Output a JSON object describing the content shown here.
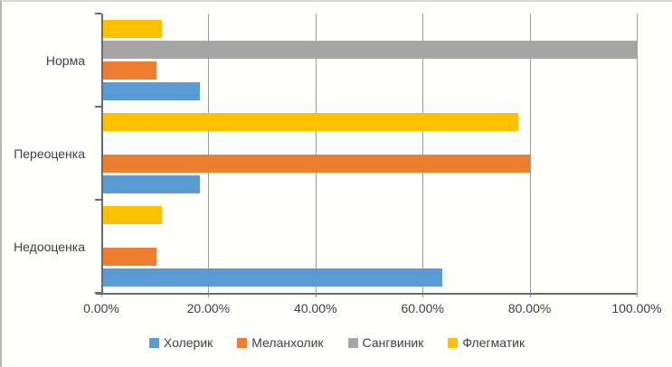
{
  "chart_data": {
    "type": "bar",
    "orientation": "horizontal",
    "title": "",
    "categories": [
      "Норма",
      "Переоценка",
      "Недооценка"
    ],
    "series": [
      {
        "name": "Холерик",
        "color": "#5B9BD5",
        "values": [
          18.2,
          18.2,
          63.6
        ]
      },
      {
        "name": "Меланхолик",
        "color": "#ED7D31",
        "values": [
          10.0,
          80.0,
          10.0
        ]
      },
      {
        "name": "Сангвиник",
        "color": "#A6A6A6",
        "values": [
          100.0,
          0.0,
          0.0
        ]
      },
      {
        "name": "Флегматик",
        "color": "#FFC000",
        "values": [
          11.1,
          77.8,
          11.1
        ]
      }
    ],
    "series_order_in_group_top_to_bottom": [
      "Флегматик",
      "Сангвиник",
      "Меланхолик",
      "Холерик"
    ],
    "x_axis": {
      "min": 0,
      "max": 100,
      "tick_step": 20,
      "tick_labels": [
        "0.00%",
        "20.00%",
        "40.00%",
        "60.00%",
        "80.00%",
        "100.00%"
      ]
    },
    "legend": {
      "position": "bottom",
      "labels": [
        "Холерик",
        "Меланхолик",
        "Сангвиник",
        "Флегматик"
      ]
    },
    "grid": true,
    "colors": {
      "gridline": "#9b9b9b",
      "axis": "#6b6b6b",
      "text": "#3f3f3f",
      "background": "#ffffff"
    }
  }
}
